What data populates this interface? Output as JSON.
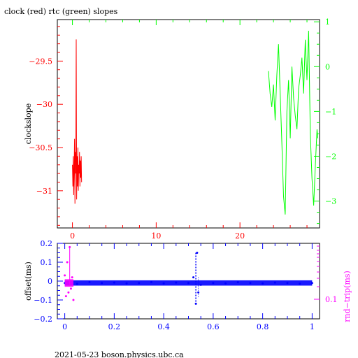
{
  "colors": {
    "clock": "#ff0000",
    "rtc": "#00ff00",
    "offset": "#0000ff",
    "rndtrip": "#ff00ff",
    "text": "#000000"
  },
  "footer": "2021-05-23 boson.physics.ubc.ca",
  "chart_data": [
    {
      "type": "line",
      "title": "clock (red) rtc (green) slopes",
      "xlabel": "",
      "ylabel": "clockslope",
      "y2label": "",
      "xlim": [
        -1.8,
        29.5
      ],
      "ylim": [
        -31.43,
        -29.02
      ],
      "y2lim": [
        -3.6,
        1.05
      ],
      "xticks": [
        0,
        10,
        20
      ],
      "xtick_labels": [
        "0",
        "10",
        "20"
      ],
      "yticks": [
        -29.5,
        -30,
        -30.5,
        -31
      ],
      "ytick_labels": [
        "−29.5",
        "−30",
        "−30.5",
        "−31"
      ],
      "y2ticks": [
        1,
        0,
        -1,
        -2,
        -3
      ],
      "y2tick_labels": [
        "1",
        "0",
        "−1",
        "−2",
        "−3"
      ],
      "grid": false,
      "legend": "none",
      "series": [
        {
          "name": "clock",
          "axis": "left",
          "x": [
            0.0,
            0.05,
            0.1,
            0.15,
            0.2,
            0.25,
            0.3,
            0.35,
            0.4,
            0.45,
            0.5,
            0.55,
            0.6,
            0.65,
            0.7,
            0.75,
            0.8,
            0.85,
            0.9,
            0.95,
            1.0,
            1.05,
            1.1
          ],
          "y": [
            -30.7,
            -30.95,
            -30.6,
            -31.05,
            -30.75,
            -30.4,
            -31.15,
            -30.55,
            -30.8,
            -29.25,
            -31.1,
            -30.6,
            -30.95,
            -30.5,
            -31.0,
            -30.7,
            -30.8,
            -30.55,
            -30.95,
            -30.65,
            -30.85,
            -30.6,
            -30.9
          ]
        },
        {
          "name": "rtc",
          "axis": "right",
          "x": [
            23.4,
            23.6,
            23.8,
            24.0,
            24.2,
            24.4,
            24.6,
            24.8,
            25.0,
            25.2,
            25.4,
            25.6,
            25.8,
            26.0,
            26.2,
            26.4,
            26.6,
            26.8,
            27.0,
            27.2,
            27.4,
            27.6,
            27.8,
            28.0,
            28.2,
            28.4,
            28.6,
            28.8,
            29.0,
            29.2,
            29.3
          ],
          "y": [
            -0.1,
            -0.6,
            -0.9,
            -0.4,
            -1.2,
            -0.2,
            0.5,
            -0.6,
            -1.7,
            -2.9,
            -3.3,
            -1.0,
            -0.3,
            -1.6,
            0.0,
            -0.7,
            -1.1,
            -1.4,
            -0.5,
            -0.2,
            0.2,
            -0.6,
            0.6,
            -0.3,
            0.8,
            -1.5,
            -2.5,
            -3.1,
            -2.2,
            -1.4,
            -1.6
          ]
        }
      ]
    },
    {
      "type": "scatter",
      "title": "",
      "xlabel": "",
      "ylabel": "offset(ms)",
      "y2label": "rnd−trip(ms)",
      "xlim": [
        -0.03,
        1.03
      ],
      "ylim": [
        -0.2,
        0.2
      ],
      "xticks": [
        0,
        0.2,
        0.4,
        0.6,
        0.8,
        1
      ],
      "xtick_labels": [
        "0",
        "0.2",
        "0.4",
        "0.6",
        "0.8",
        "1"
      ],
      "yticks": [
        0.2,
        0.1,
        0,
        -0.1,
        -0.2
      ],
      "ytick_labels": [
        "0.2",
        "0.1",
        "0",
        "−0.1",
        "−0.2"
      ],
      "y2tick_labels": [
        "0.1"
      ],
      "grid": false,
      "legend": "none",
      "series": [
        {
          "name": "offset",
          "axis": "left",
          "x": [
            0.0,
            0.05,
            0.1,
            0.15,
            0.2,
            0.25,
            0.3,
            0.35,
            0.4,
            0.45,
            0.5,
            0.52,
            0.53,
            0.535,
            0.54,
            0.55,
            0.6,
            0.65,
            0.7,
            0.75,
            0.8,
            0.85,
            0.9,
            0.95,
            1.0
          ],
          "y": [
            -0.01,
            -0.015,
            -0.005,
            -0.01,
            -0.008,
            -0.012,
            -0.01,
            -0.005,
            -0.012,
            -0.008,
            -0.01,
            0.02,
            -0.12,
            0.15,
            -0.06,
            -0.02,
            -0.01,
            -0.012,
            -0.006,
            -0.01,
            -0.012,
            -0.008,
            -0.01,
            -0.014,
            -0.01
          ]
        },
        {
          "name": "rnd-trip",
          "axis": "right",
          "x": [
            0.0,
            0.005,
            0.01,
            0.015,
            0.02,
            0.025,
            0.03,
            0.035
          ],
          "y": [
            0.03,
            -0.08,
            0.1,
            -0.06,
            0.18,
            -0.04,
            0.02,
            -0.1
          ]
        }
      ]
    }
  ]
}
